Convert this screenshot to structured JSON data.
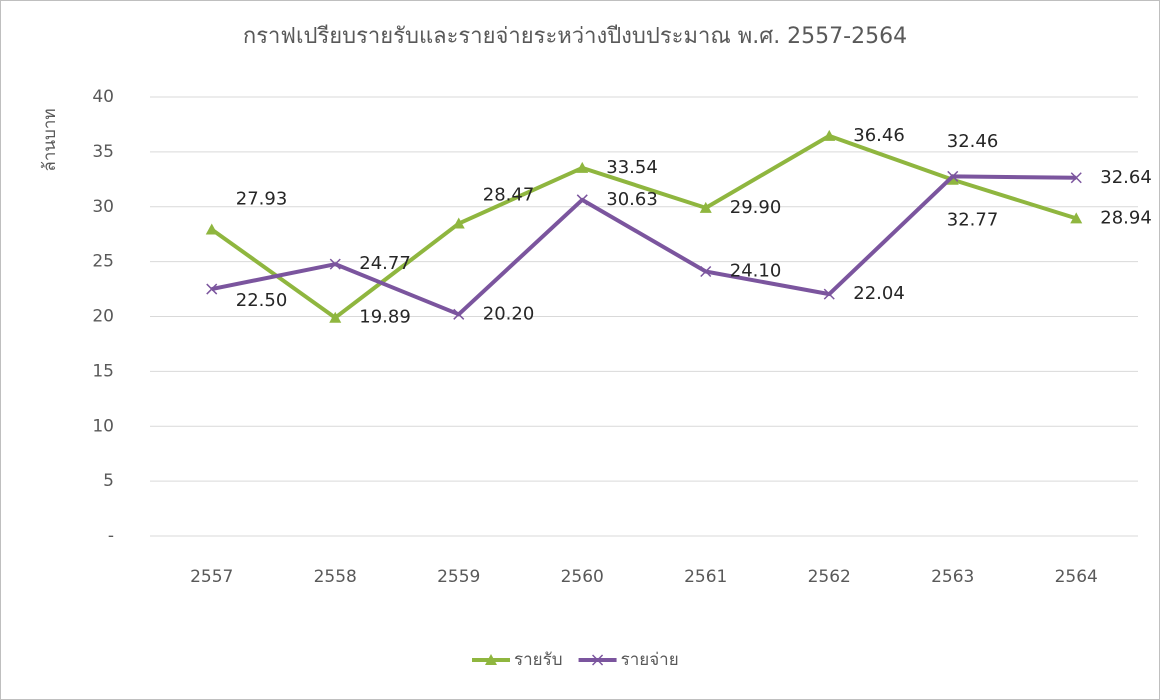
{
  "chart_data": {
    "type": "line",
    "title": "กราฟเปรียบรายรับและรายจ่ายระหว่างปีงบประมาณ พ.ศ. 2557-2564",
    "y_label": "ล้านบาท",
    "categories": [
      "2557",
      "2558",
      "2559",
      "2560",
      "2561",
      "2562",
      "2563",
      "2564"
    ],
    "series": [
      {
        "name": "รายรับ",
        "color": "#8fb63f",
        "marker": "triangle",
        "values": [
          27.93,
          19.89,
          28.47,
          33.54,
          29.9,
          36.46,
          32.46,
          28.94
        ],
        "value_labels": [
          "27.93",
          "19.89",
          "28.47",
          "33.54",
          "29.90",
          "36.46",
          "32.46",
          "28.94"
        ]
      },
      {
        "name": "รายจ่าย",
        "color": "#7b559e",
        "marker": "x",
        "values": [
          22.5,
          24.77,
          20.2,
          30.63,
          24.1,
          22.04,
          32.77,
          32.64
        ],
        "value_labels": [
          "22.50",
          "24.77",
          "20.20",
          "30.63",
          "24.10",
          "22.04",
          "32.77",
          "32.64"
        ]
      }
    ],
    "ylim": [
      0,
      40
    ],
    "yticks": [
      {
        "value": 0,
        "label": "-"
      },
      5,
      10,
      15,
      20,
      25,
      30,
      35,
      40
    ],
    "grid": true,
    "legend": "bottom"
  }
}
